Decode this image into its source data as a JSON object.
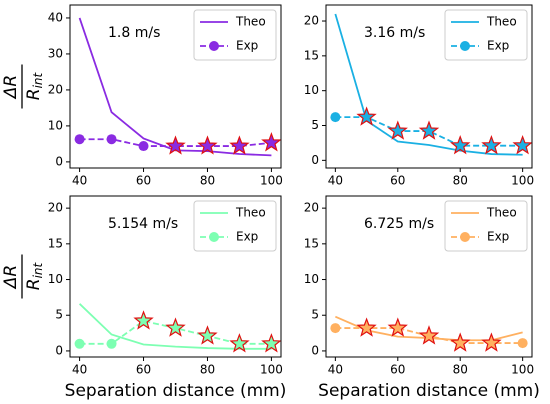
{
  "chart_data": [
    {
      "type": "line",
      "annotation": "1.8 m/s",
      "ylabel_numerator": "ΔR",
      "ylabel_denominator": "R",
      "ylabel_subscript": "int",
      "x": [
        40,
        50,
        60,
        70,
        80,
        90,
        100
      ],
      "xlim": [
        37,
        103
      ],
      "xticks": [
        40,
        60,
        80,
        100
      ],
      "ylim": [
        -1.7,
        43.6
      ],
      "yticks": [
        0,
        10,
        20,
        30,
        40
      ],
      "legend": "upper right",
      "series": [
        {
          "name": "Theo",
          "color": "#8a2be2",
          "style": "solid",
          "values": [
            40,
            13.8,
            6.5,
            3.2,
            3.0,
            2.2,
            1.8
          ]
        },
        {
          "name": "Exp",
          "color": "#8a2be2",
          "style": "dashed",
          "values": [
            6.3,
            6.3,
            4.4,
            4.4,
            4.4,
            4.4,
            5.3
          ],
          "markers": [
            "circle",
            "circle",
            "circle",
            "star",
            "star",
            "star",
            "star"
          ]
        }
      ]
    },
    {
      "type": "line",
      "annotation": "3.16 m/s",
      "x": [
        40,
        50,
        60,
        70,
        80,
        90,
        100
      ],
      "xlim": [
        37,
        103
      ],
      "xticks": [
        40,
        60,
        80,
        100
      ],
      "ylim": [
        -1.1,
        22.3
      ],
      "yticks": [
        0,
        5,
        10,
        15,
        20
      ],
      "legend": "upper right",
      "series": [
        {
          "name": "Theo",
          "color": "#1ab0e3",
          "style": "solid",
          "values": [
            21,
            5.7,
            2.7,
            2.2,
            1.4,
            0.9,
            0.8
          ]
        },
        {
          "name": "Exp",
          "color": "#1ab0e3",
          "style": "dashed",
          "values": [
            6.2,
            6.2,
            4.2,
            4.2,
            2.1,
            2.1,
            2.1
          ],
          "markers": [
            "circle",
            "star",
            "star",
            "star",
            "star",
            "star",
            "star"
          ]
        }
      ]
    },
    {
      "type": "line",
      "annotation": "5.154 m/s",
      "ylabel_numerator": "ΔR",
      "ylabel_denominator": "R",
      "ylabel_subscript": "int",
      "xlabel": "Separation distance (mm)",
      "x": [
        40,
        50,
        60,
        70,
        80,
        90,
        100
      ],
      "xlim": [
        37,
        103
      ],
      "xticks": [
        40,
        60,
        80,
        100
      ],
      "ylim": [
        -0.85,
        21.7
      ],
      "yticks": [
        0,
        5,
        10,
        15,
        20
      ],
      "legend": "upper right",
      "series": [
        {
          "name": "Theo",
          "color": "#7dffb2",
          "style": "solid",
          "values": [
            6.6,
            2.3,
            0.9,
            0.6,
            0.4,
            0.3,
            0.3
          ]
        },
        {
          "name": "Exp",
          "color": "#7dffb2",
          "style": "dashed",
          "values": [
            1.0,
            1.0,
            4.2,
            3.2,
            2.1,
            1.0,
            1.0
          ],
          "markers": [
            "circle",
            "circle",
            "star",
            "star",
            "star",
            "star",
            "star"
          ]
        }
      ]
    },
    {
      "type": "line",
      "annotation": "6.725 m/s",
      "xlabel": "Separation distance (mm)",
      "x": [
        40,
        50,
        60,
        70,
        80,
        90,
        100
      ],
      "xlim": [
        37,
        103
      ],
      "xticks": [
        40,
        60,
        80,
        100
      ],
      "ylim": [
        -0.85,
        21.7
      ],
      "yticks": [
        0,
        5,
        10,
        15,
        20
      ],
      "legend": "upper right",
      "series": [
        {
          "name": "Theo",
          "color": "#ffb060",
          "style": "solid",
          "values": [
            4.8,
            2.9,
            2.0,
            1.8,
            1.5,
            1.5,
            2.6
          ]
        },
        {
          "name": "Exp",
          "color": "#ffb060",
          "style": "dashed",
          "values": [
            3.2,
            3.2,
            3.2,
            2.1,
            1.1,
            1.1,
            1.1
          ],
          "markers": [
            "circle",
            "star",
            "star",
            "star",
            "star",
            "star",
            "circle"
          ]
        }
      ]
    }
  ]
}
